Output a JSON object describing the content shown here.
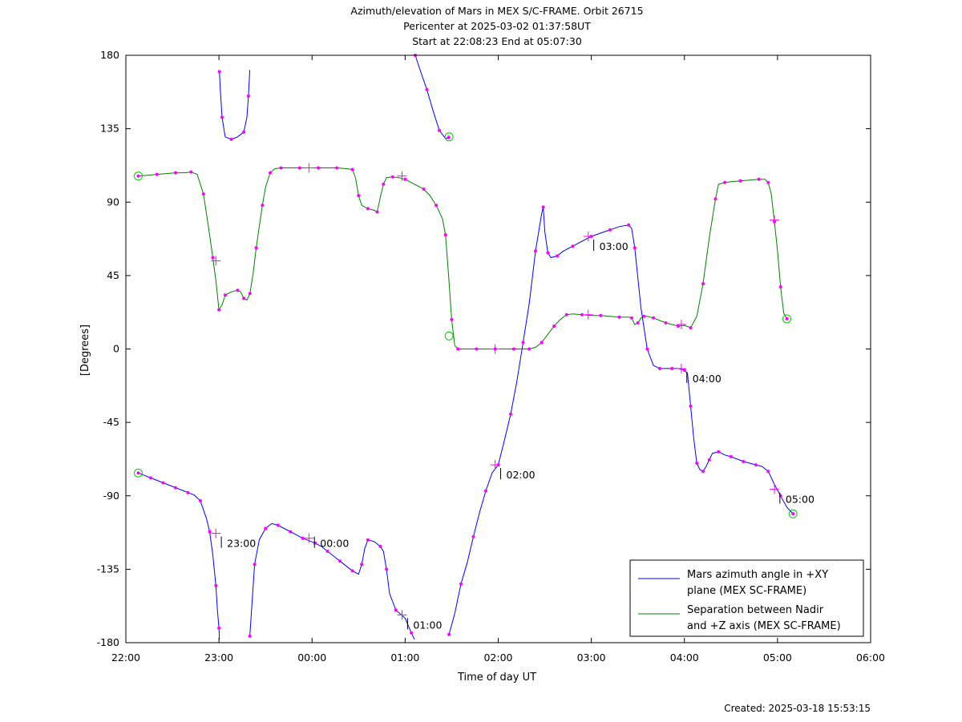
{
  "titles": [
    "Azimuth/elevation of Mars in MEX S/C-FRAME.  Orbit 26715",
    "Pericenter at 2025-03-02 01:37:58UT",
    "Start at 22:08:23 End at 05:07:30"
  ],
  "footer": "Created: 2025-03-18 15:53:15",
  "chart_data": {
    "type": "line",
    "xlabel": "Time of day UT",
    "ylabel": "[Degrees]",
    "xlim": [
      0,
      480
    ],
    "ylim": [
      -180,
      180
    ],
    "x_ticks": [
      {
        "v": 0,
        "label": "22:00"
      },
      {
        "v": 60,
        "label": "23:00"
      },
      {
        "v": 120,
        "label": "00:00"
      },
      {
        "v": 180,
        "label": "01:00"
      },
      {
        "v": 240,
        "label": "02:00"
      },
      {
        "v": 300,
        "label": "03:00"
      },
      {
        "v": 360,
        "label": "04:00"
      },
      {
        "v": 420,
        "label": "05:00"
      },
      {
        "v": 480,
        "label": "06:00"
      }
    ],
    "y_ticks": [
      180,
      135,
      90,
      45,
      0,
      -45,
      -90,
      -135,
      -180
    ],
    "grid": false,
    "legend_position": "bottom-right",
    "series": [
      {
        "name": "Mars azimuth angle in +XY plane (MEX SC-FRAME)",
        "legend_lines": [
          "Mars azimuth angle in +XY",
          "plane (MEX SC-FRAME)"
        ],
        "color": "#0000ff",
        "segments": [
          [
            [
              8,
              -76
            ],
            [
              12,
              -77.5
            ],
            [
              16,
              -79
            ],
            [
              20,
              -80.5
            ],
            [
              24,
              -82
            ],
            [
              28,
              -83.5
            ],
            [
              32,
              -85
            ],
            [
              36,
              -86.5
            ],
            [
              40,
              -88
            ],
            [
              44,
              -89.5
            ],
            [
              48,
              -93
            ],
            [
              52,
              -104
            ],
            [
              54,
              -112
            ],
            [
              56,
              -126
            ],
            [
              58,
              -145
            ],
            [
              59,
              -160
            ],
            [
              60,
              -171
            ],
            [
              60.3,
              -178
            ]
          ],
          [
            [
              60.3,
              170
            ],
            [
              60.8,
              160
            ],
            [
              62,
              142
            ],
            [
              64,
              130
            ],
            [
              68,
              128.5
            ],
            [
              72,
              130
            ],
            [
              76,
              133
            ],
            [
              78,
              142
            ],
            [
              79,
              155
            ],
            [
              79.9,
              171
            ]
          ],
          [
            [
              79.9,
              -176
            ],
            [
              81,
              -160
            ],
            [
              83,
              -132
            ],
            [
              86,
              -117
            ],
            [
              90,
              -110
            ],
            [
              94,
              -107
            ],
            [
              98,
              -108
            ],
            [
              102,
              -110
            ],
            [
              106,
              -112
            ],
            [
              110,
              -114
            ],
            [
              114,
              -116
            ],
            [
              118,
              -117.5
            ],
            [
              122,
              -119
            ],
            [
              126,
              -121
            ],
            [
              130,
              -124
            ],
            [
              134,
              -127
            ],
            [
              138,
              -130
            ],
            [
              142,
              -133
            ],
            [
              146,
              -136
            ],
            [
              150,
              -138
            ],
            [
              152,
              -132
            ],
            [
              154,
              -122
            ],
            [
              156,
              -117
            ],
            [
              160,
              -118
            ],
            [
              164,
              -121
            ],
            [
              166,
              -124
            ],
            [
              168,
              -135
            ],
            [
              170,
              -150
            ],
            [
              174,
              -160
            ],
            [
              180,
              -165
            ],
            [
              184,
              -174
            ],
            [
              186,
              -178
            ]
          ],
          [
            [
              186.5,
              180
            ],
            [
              190,
              170
            ],
            [
              194,
              159
            ],
            [
              198,
              146
            ],
            [
              202,
              134
            ],
            [
              206,
              129
            ],
            [
              208,
              129.5
            ],
            [
              208.3,
              131
            ]
          ],
          [
            [
              208.3,
              -175
            ],
            [
              212,
              -162
            ],
            [
              216,
              -144
            ],
            [
              220,
              -131
            ],
            [
              224,
              -115
            ],
            [
              228,
              -100
            ],
            [
              232,
              -87
            ],
            [
              236,
              -76
            ],
            [
              240,
              -71
            ],
            [
              244,
              -56
            ],
            [
              248,
              -40
            ],
            [
              252,
              -20
            ],
            [
              256,
              4
            ],
            [
              260,
              28
            ],
            [
              264,
              60
            ],
            [
              268,
              83
            ],
            [
              269,
              87
            ],
            [
              270,
              72
            ],
            [
              272,
              59
            ],
            [
              274,
              56
            ],
            [
              278,
              57
            ],
            [
              282,
              60
            ],
            [
              288,
              63
            ],
            [
              294,
              66
            ],
            [
              300,
              69
            ],
            [
              306,
              71
            ],
            [
              312,
              73
            ],
            [
              318,
              75
            ],
            [
              324,
              76
            ],
            [
              326,
              74
            ],
            [
              328,
              62
            ],
            [
              332,
              25
            ],
            [
              336,
              0
            ],
            [
              340,
              -10
            ],
            [
              344,
              -12
            ],
            [
              348,
              -12
            ],
            [
              352,
              -12
            ],
            [
              356,
              -12
            ],
            [
              360,
              -13
            ],
            [
              362,
              -15
            ],
            [
              364,
              -35
            ],
            [
              366,
              -55
            ],
            [
              368,
              -70
            ],
            [
              370,
              -74
            ],
            [
              372,
              -75
            ],
            [
              374,
              -72
            ],
            [
              376,
              -68
            ],
            [
              378,
              -64
            ],
            [
              382,
              -63
            ],
            [
              386,
              -65
            ],
            [
              390,
              -66
            ],
            [
              394,
              -67.5
            ],
            [
              398,
              -69
            ],
            [
              402,
              -70
            ],
            [
              406,
              -71
            ],
            [
              410,
              -72
            ],
            [
              414,
              -75
            ],
            [
              418,
              -83
            ],
            [
              422,
              -90
            ],
            [
              426,
              -97
            ],
            [
              430,
              -101
            ]
          ]
        ]
      },
      {
        "name": "Separation between Nadir and +Z axis (MEX SC-FRAME)",
        "legend_lines": [
          "Separation between Nadir",
          "and +Z axis (MEX SC-FRAME)"
        ],
        "color": "#008000",
        "segments": [
          [
            [
              8,
              106
            ],
            [
              14,
              106.5
            ],
            [
              20,
              107
            ],
            [
              26,
              107.5
            ],
            [
              32,
              108
            ],
            [
              38,
              108
            ],
            [
              42,
              108.5
            ],
            [
              46,
              107
            ],
            [
              50,
              95
            ],
            [
              54,
              70
            ],
            [
              56,
              56
            ],
            [
              58,
              42
            ],
            [
              60,
              24
            ],
            [
              62,
              27
            ],
            [
              64,
              33
            ],
            [
              68,
              35
            ],
            [
              72,
              36
            ],
            [
              74,
              35
            ],
            [
              76,
              31
            ],
            [
              78,
              30
            ],
            [
              80,
              34
            ],
            [
              82,
              46
            ],
            [
              84,
              62
            ],
            [
              86,
              75
            ],
            [
              88,
              88
            ],
            [
              90,
              99
            ],
            [
              93,
              108
            ],
            [
              96,
              110.5
            ],
            [
              100,
              111
            ],
            [
              106,
              111
            ],
            [
              112,
              111
            ],
            [
              118,
              111
            ],
            [
              124,
              111
            ],
            [
              130,
              111
            ],
            [
              136,
              111
            ],
            [
              142,
              110.5
            ],
            [
              146,
              110
            ],
            [
              148,
              105
            ],
            [
              150,
              94
            ],
            [
              152,
              88
            ],
            [
              156,
              86
            ],
            [
              160,
              85
            ],
            [
              162,
              84
            ],
            [
              164,
              93
            ],
            [
              166,
              101
            ],
            [
              168,
              105
            ],
            [
              172,
              105.5
            ],
            [
              176,
              105
            ],
            [
              180,
              104
            ],
            [
              186,
              101
            ],
            [
              192,
              98
            ],
            [
              196,
              94
            ],
            [
              200,
              88
            ],
            [
              204,
              80
            ],
            [
              206,
              70
            ],
            [
              208,
              45
            ],
            [
              210,
              18
            ],
            [
              212,
              2
            ],
            [
              214,
              0
            ],
            [
              220,
              0
            ],
            [
              226,
              0
            ],
            [
              232,
              0
            ],
            [
              238,
              0
            ],
            [
              244,
              0
            ],
            [
              250,
              0
            ],
            [
              256,
              0
            ],
            [
              260,
              0
            ],
            [
              264,
              1
            ],
            [
              268,
              4
            ],
            [
              272,
              9
            ],
            [
              276,
              14
            ],
            [
              280,
              18
            ],
            [
              284,
              21
            ],
            [
              288,
              21.5
            ],
            [
              294,
              21
            ],
            [
              300,
              20.5
            ],
            [
              306,
              20.5
            ],
            [
              312,
              20
            ],
            [
              318,
              19.5
            ],
            [
              324,
              19.5
            ],
            [
              326,
              19
            ],
            [
              328,
              15
            ],
            [
              330,
              16
            ],
            [
              332,
              19
            ],
            [
              334,
              20
            ],
            [
              336,
              20
            ],
            [
              340,
              19
            ],
            [
              344,
              17.5
            ],
            [
              348,
              16
            ],
            [
              352,
              15
            ],
            [
              356,
              14
            ],
            [
              360,
              14.5
            ],
            [
              364,
              13
            ],
            [
              368,
              20
            ],
            [
              372,
              40
            ],
            [
              376,
              68
            ],
            [
              380,
              92
            ],
            [
              382,
              101
            ],
            [
              386,
              102
            ],
            [
              390,
              102.5
            ],
            [
              396,
              103
            ],
            [
              402,
              103.5
            ],
            [
              408,
              104
            ],
            [
              412,
              104
            ],
            [
              414,
              102
            ],
            [
              416,
              95
            ],
            [
              418,
              78
            ],
            [
              420,
              60
            ],
            [
              422,
              38
            ],
            [
              424,
              22
            ],
            [
              426,
              18.5
            ]
          ]
        ]
      }
    ],
    "time_markers": [
      {
        "x": 60,
        "y": -113,
        "label": "23:00"
      },
      {
        "x": 120,
        "y": -113,
        "label": "00:00"
      },
      {
        "x": 180,
        "y": -163,
        "label": "01:00"
      },
      {
        "x": 240,
        "y": -71,
        "label": "02:00"
      },
      {
        "x": 300,
        "y": 69,
        "label": "03:00"
      },
      {
        "x": 360,
        "y": -12,
        "label": "04:00"
      },
      {
        "x": 420,
        "y": -86,
        "label": "05:00"
      }
    ],
    "annotations": {
      "start_circles": [
        [
          8,
          -76
        ],
        [
          8,
          106
        ],
        [
          208.3,
          130
        ],
        [
          208.3,
          8
        ]
      ],
      "end_circles": [
        [
          426,
          18.5
        ],
        [
          430,
          -101
        ]
      ],
      "plus_markers": [
        [
          58,
          -113
        ],
        [
          58,
          54
        ],
        [
          118,
          -116
        ],
        [
          118,
          111
        ],
        [
          178,
          -163
        ],
        [
          178,
          106
        ],
        [
          238,
          -71
        ],
        [
          238,
          0
        ],
        [
          298,
          69
        ],
        [
          298,
          21
        ],
        [
          358,
          -12
        ],
        [
          358,
          15
        ],
        [
          418,
          -86
        ],
        [
          418,
          79
        ]
      ]
    }
  }
}
